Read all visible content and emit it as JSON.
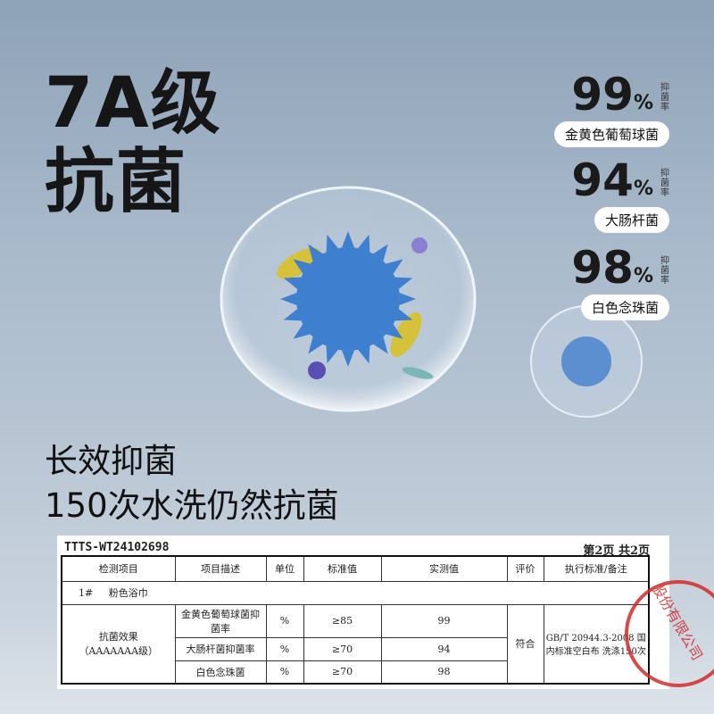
{
  "headline": {
    "line1": "7A级",
    "line2": "抗菌"
  },
  "stats": [
    {
      "value": "99",
      "unit": "%",
      "rate_label": "抑菌率",
      "bacteria": "金黄色葡萄球菌"
    },
    {
      "value": "94",
      "unit": "%",
      "rate_label": "抑菌率",
      "bacteria": "大肠杆菌"
    },
    {
      "value": "98",
      "unit": "%",
      "rate_label": "抑菌率",
      "bacteria": "白色念珠菌"
    }
  ],
  "subtitle": {
    "line1": "长效抑菌",
    "line2": "150次水洗仍然抗菌"
  },
  "report": {
    "report_no": "TTTS-WT24102698",
    "page": "第2页 共2页",
    "headers": [
      "检测项目",
      "项目描述",
      "单位",
      "标准值",
      "实测值",
      "评价",
      "执行标准/备注"
    ],
    "sample": {
      "id": "1#",
      "name": "粉色浴巾"
    },
    "item": "抗菌效果",
    "item_grade": "（AAAAAAA级）",
    "rows": [
      {
        "desc": "金黄色葡萄球菌抑菌率",
        "unit": "%",
        "standard": "≥85",
        "measured": "99"
      },
      {
        "desc": "大肠杆菌抑菌率",
        "unit": "%",
        "standard": "≥70",
        "measured": "94"
      },
      {
        "desc": "白色念珠菌",
        "unit": "%",
        "standard": "≥70",
        "measured": "98"
      }
    ],
    "evaluation": "符合",
    "standard_note": "GB/T 20944.3-2008 国内标准空白布 洗涤150次",
    "stamp_text": "股份有限公司"
  },
  "colors": {
    "virus": "#3f7fcf",
    "stamp": "#d42a2a",
    "background": "#a9bacb"
  }
}
